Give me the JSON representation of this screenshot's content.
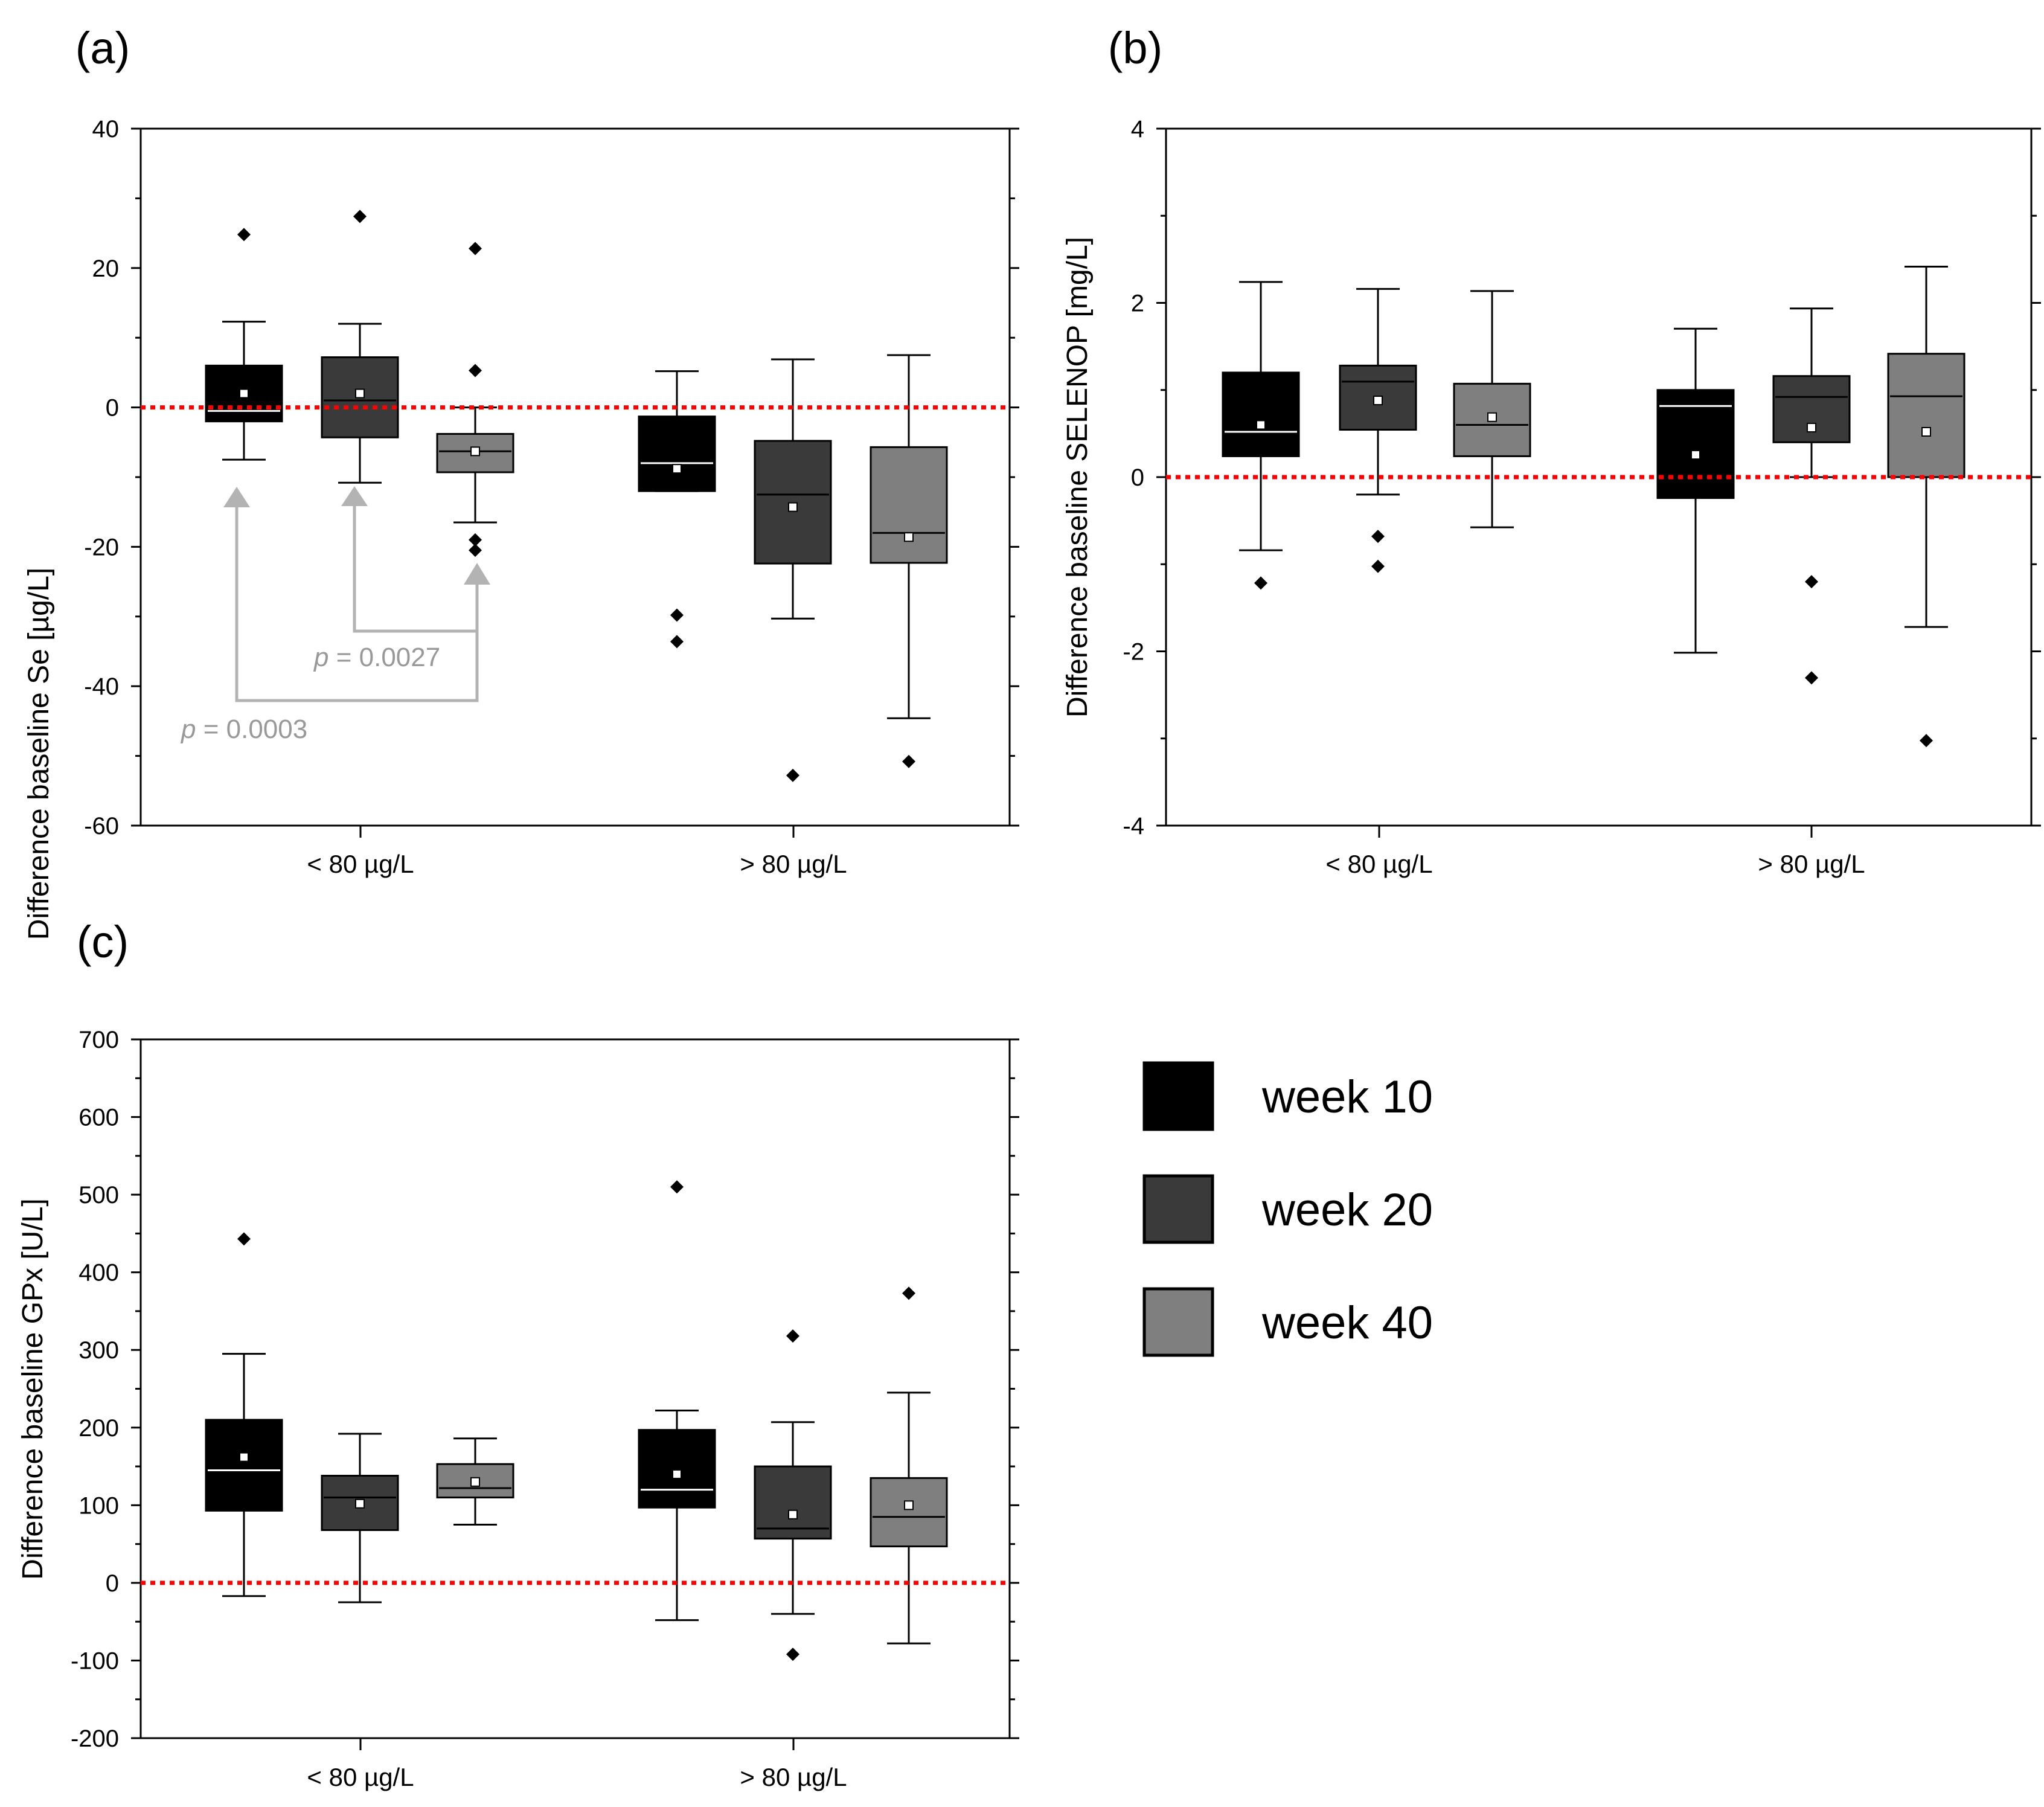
{
  "colors": {
    "week10": "#000000",
    "week20": "#3a3a3a",
    "week40": "#7f7f7f",
    "reference_line": "#ff0000",
    "annotation": "#b3b3b3"
  },
  "legend": {
    "items": [
      {
        "label": "week 10",
        "color": "#000000"
      },
      {
        "label": "week 20",
        "color": "#3a3a3a"
      },
      {
        "label": "week 40",
        "color": "#7f7f7f"
      }
    ]
  },
  "chart_data": [
    {
      "panel": "(a)",
      "type": "box",
      "ylabel": "Difference baseline Se [µg/L]",
      "ylim": [
        -60,
        40
      ],
      "yticks": [
        "40",
        "20",
        "0",
        "-20",
        "-40",
        "-60"
      ],
      "categories": [
        "< 80 µg/L",
        "> 80 µg/L"
      ],
      "reference_line": 0,
      "series": [
        {
          "name": "week 10",
          "boxes": [
            {
              "whisker_low": -7.5,
              "q1": -2,
              "median": -0.5,
              "q3": 6,
              "whisker_high": 12.3,
              "mean": 2,
              "outliers": [
                24.8
              ]
            },
            {
              "whisker_low": -12,
              "q1": -12,
              "median": -8,
              "q3": -1.3,
              "whisker_high": 5.2,
              "mean": -8.8,
              "outliers": [
                -29.8,
                -33.6
              ]
            }
          ]
        },
        {
          "name": "week 20",
          "boxes": [
            {
              "whisker_low": -10.8,
              "q1": -4.3,
              "median": 1,
              "q3": 7.2,
              "whisker_high": 12,
              "mean": 2,
              "outliers": [
                27.4
              ]
            },
            {
              "whisker_low": -30.3,
              "q1": -22.4,
              "median": -12.5,
              "q3": -4.8,
              "whisker_high": 6.9,
              "mean": -14.3,
              "outliers": [
                -52.8
              ]
            }
          ]
        },
        {
          "name": "week 40",
          "boxes": [
            {
              "whisker_low": -16.5,
              "q1": -9.3,
              "median": -6.3,
              "q3": -3.8,
              "whisker_high": 0,
              "mean": -6.3,
              "outliers": [
                22.8,
                5.3,
                -19,
                -20.5
              ]
            },
            {
              "whisker_low": -44.6,
              "q1": -22.3,
              "median": -18,
              "q3": -5.7,
              "whisker_high": 7.5,
              "mean": -18.6,
              "outliers": [
                -50.8
              ]
            }
          ]
        }
      ],
      "annotations": [
        {
          "prefix": "p",
          "text": " = 0.0027"
        },
        {
          "prefix": "p",
          "text": " = 0.0003"
        }
      ]
    },
    {
      "panel": "(b)",
      "type": "box",
      "ylabel": "Difference baseline SELENOP [mg/L]",
      "ylim": [
        -5,
        5
      ],
      "yticks": [
        "4",
        "2",
        "0",
        "-2",
        "-4"
      ],
      "categories": [
        "< 80 µg/L",
        "> 80 µg/L"
      ],
      "reference_line": 0,
      "series": [
        {
          "name": "week 10",
          "boxes": [
            {
              "whisker_low": -1.05,
              "q1": 0.3,
              "median": 0.65,
              "q3": 1.5,
              "whisker_high": 2.8,
              "mean": 0.75,
              "outliers": [
                -1.52
              ]
            },
            {
              "whisker_low": -2.52,
              "q1": -0.3,
              "median": 1.02,
              "q3": 1.25,
              "whisker_high": 2.13,
              "mean": 0.32,
              "outliers": []
            }
          ]
        },
        {
          "name": "week 20",
          "boxes": [
            {
              "whisker_low": -0.25,
              "q1": 0.68,
              "median": 1.37,
              "q3": 1.6,
              "whisker_high": 2.7,
              "mean": 1.1,
              "outliers": [
                -0.85,
                -1.28
              ]
            },
            {
              "whisker_low": 0,
              "q1": 0.5,
              "median": 1.15,
              "q3": 1.45,
              "whisker_high": 2.42,
              "mean": 0.71,
              "outliers": [
                -1.5,
                -2.88
              ]
            }
          ]
        },
        {
          "name": "week 40",
          "boxes": [
            {
              "whisker_low": -0.72,
              "q1": 0.3,
              "median": 0.75,
              "q3": 1.34,
              "whisker_high": 2.67,
              "mean": 0.86,
              "outliers": []
            },
            {
              "whisker_low": -2.15,
              "q1": 0,
              "median": 1.16,
              "q3": 1.77,
              "whisker_high": 3.02,
              "mean": 0.65,
              "outliers": [
                -3.78
              ]
            }
          ]
        }
      ]
    },
    {
      "panel": "(c)",
      "type": "box",
      "ylabel": "Difference baseline GPx [U/L]",
      "ylim": [
        -200,
        700
      ],
      "yticks": [
        "700",
        "600",
        "500",
        "400",
        "300",
        "200",
        "100",
        "0",
        "-100",
        "-200"
      ],
      "categories": [
        "< 80 µg/L",
        "> 80 µg/L"
      ],
      "reference_line": 0,
      "series": [
        {
          "name": "week 10",
          "boxes": [
            {
              "whisker_low": -17,
              "q1": 93,
              "median": 145,
              "q3": 210,
              "whisker_high": 295,
              "mean": 162,
              "outliers": [
                443
              ]
            },
            {
              "whisker_low": -48,
              "q1": 97,
              "median": 120,
              "q3": 197,
              "whisker_high": 222,
              "mean": 140,
              "outliers": [
                510
              ]
            }
          ]
        },
        {
          "name": "week 20",
          "boxes": [
            {
              "whisker_low": -25,
              "q1": 68,
              "median": 110,
              "q3": 138,
              "whisker_high": 192,
              "mean": 102,
              "outliers": []
            },
            {
              "whisker_low": -40,
              "q1": 57,
              "median": 70,
              "q3": 150,
              "whisker_high": 207,
              "mean": 88,
              "outliers": [
                318,
                -92
              ]
            }
          ]
        },
        {
          "name": "week 40",
          "boxes": [
            {
              "whisker_low": 75,
              "q1": 110,
              "median": 122,
              "q3": 153,
              "whisker_high": 186,
              "mean": 130,
              "outliers": []
            },
            {
              "whisker_low": -78,
              "q1": 47,
              "median": 85,
              "q3": 135,
              "whisker_high": 245,
              "mean": 100,
              "outliers": [
                373
              ]
            }
          ]
        }
      ]
    }
  ]
}
